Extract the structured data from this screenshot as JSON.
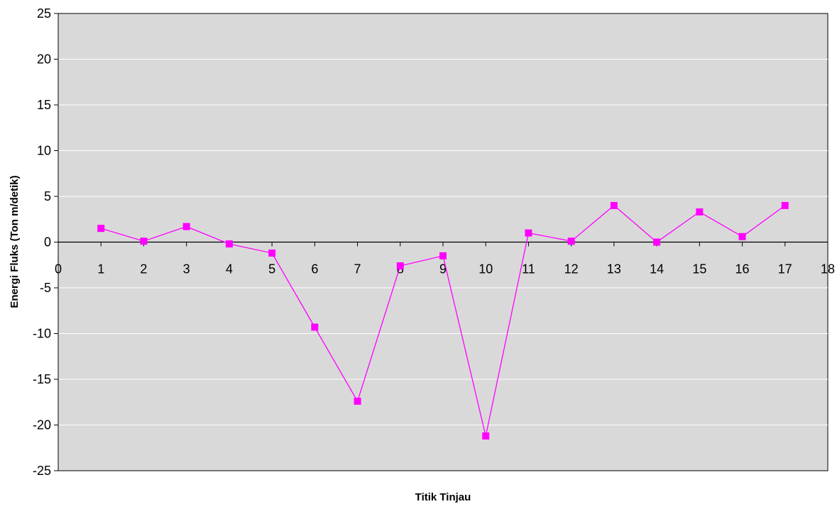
{
  "chart_data": {
    "type": "line",
    "title": "",
    "xlabel": "Titik Tinjau",
    "ylabel": "Energi Fluks (Ton m/detik)",
    "xlim": [
      0,
      18
    ],
    "ylim": [
      -25,
      25
    ],
    "x_ticks": [
      "0",
      "1",
      "2",
      "3",
      "4",
      "5",
      "6",
      "7",
      "8",
      "9",
      "10",
      "11",
      "12",
      "13",
      "14",
      "15",
      "16",
      "17",
      "18"
    ],
    "y_ticks": [
      "25",
      "20",
      "15",
      "10",
      "5",
      "0",
      "-5",
      "-10",
      "-15",
      "-20",
      "-25"
    ],
    "grid": "horizontal",
    "legend": "none",
    "series": [
      {
        "color": "#ff00ff",
        "marker": "square",
        "x": [
          1,
          2,
          3,
          4,
          5,
          6,
          7,
          8,
          9,
          10,
          11,
          12,
          13,
          14,
          15,
          16,
          17
        ],
        "y": [
          1.5,
          0.1,
          1.7,
          -0.2,
          -1.2,
          -9.3,
          -17.4,
          -2.6,
          -1.5,
          -21.2,
          1.0,
          0.1,
          4.0,
          0.0,
          3.3,
          0.6,
          4.0
        ]
      }
    ],
    "colors": {
      "plot_background": "#d9d9d9",
      "gridline": "#ffffff",
      "series": "#ff00ff"
    }
  }
}
